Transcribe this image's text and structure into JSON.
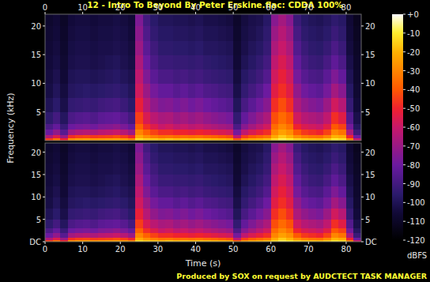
{
  "title": "12 - Intro To Beyond By Peter Erskine.flac: CDDA 100%",
  "footer": "Produced by SOX on request by AUDCTECT TASK MANAGER",
  "x_label": "Time (s)",
  "y_label": "Frequency (kHz)",
  "colorbar": {
    "label": "dBFS",
    "range": [
      -120,
      0
    ],
    "ticks": [
      {
        "value": 0,
        "label": "+0"
      },
      -10,
      -20,
      -30,
      -40,
      -50,
      -60,
      -70,
      -80,
      -90,
      -100,
      -110,
      -120
    ]
  },
  "chart_data": [
    {
      "type": "heatmap",
      "xlim": [
        0,
        84
      ],
      "ylim": [
        0,
        22.05
      ],
      "xticks": [
        0,
        10,
        20,
        30,
        40,
        50,
        60,
        70,
        80
      ],
      "yticks": [
        5,
        10,
        15,
        20
      ],
      "x_bins": [
        0,
        2,
        4,
        6,
        8,
        10,
        12,
        14,
        16,
        18,
        20,
        22,
        24,
        26,
        28,
        30,
        32,
        34,
        36,
        38,
        40,
        42,
        44,
        46,
        48,
        50,
        52,
        54,
        56,
        58,
        60,
        62,
        64,
        66,
        68,
        70,
        72,
        74,
        76,
        78,
        80,
        82,
        84
      ],
      "y_bins": [
        0,
        0.5,
        1,
        2,
        3,
        5,
        7.5,
        10,
        12.5,
        15,
        17.5,
        20,
        22.05
      ],
      "cells": [
        [
          -45,
          -65,
          -80,
          -88,
          -95,
          -100,
          -103,
          -104,
          -105,
          -106,
          -107,
          -108
        ],
        [
          -35,
          -55,
          -72,
          -82,
          -90,
          -96,
          -99,
          -101,
          -103,
          -104,
          -105,
          -106
        ],
        [
          -50,
          -70,
          -85,
          -92,
          -98,
          -102,
          -104,
          -106,
          -107,
          -108,
          -109,
          -110
        ],
        [
          -28,
          -48,
          -68,
          -80,
          -88,
          -94,
          -98,
          -100,
          -102,
          -103,
          -104,
          -105
        ],
        [
          -25,
          -45,
          -65,
          -78,
          -86,
          -93,
          -97,
          -99,
          -101,
          -102,
          -103,
          -104
        ],
        [
          -24,
          -44,
          -64,
          -77,
          -85,
          -92,
          -96,
          -99,
          -101,
          -102,
          -103,
          -104
        ],
        [
          -26,
          -46,
          -66,
          -79,
          -87,
          -93,
          -97,
          -100,
          -102,
          -103,
          -104,
          -105
        ],
        [
          -25,
          -45,
          -63,
          -76,
          -84,
          -91,
          -96,
          -99,
          -101,
          -102,
          -103,
          -104
        ],
        [
          -24,
          -44,
          -62,
          -75,
          -83,
          -90,
          -95,
          -98,
          -100,
          -102,
          -103,
          -104
        ],
        [
          -23,
          -42,
          -60,
          -73,
          -82,
          -89,
          -94,
          -97,
          -99,
          -101,
          -102,
          -103
        ],
        [
          -25,
          -45,
          -64,
          -77,
          -85,
          -92,
          -96,
          -99,
          -101,
          -102,
          -103,
          -104
        ],
        [
          -30,
          -50,
          -70,
          -82,
          -90,
          -96,
          -99,
          -101,
          -103,
          -104,
          -105,
          -106
        ],
        [
          -12,
          -22,
          -30,
          -38,
          -45,
          -52,
          -58,
          -62,
          -66,
          -70,
          -73,
          -76
        ],
        [
          -15,
          -28,
          -38,
          -48,
          -56,
          -64,
          -70,
          -76,
          -80,
          -84,
          -87,
          -90
        ],
        [
          -16,
          -32,
          -44,
          -55,
          -63,
          -72,
          -78,
          -84,
          -88,
          -91,
          -94,
          -96
        ],
        [
          -18,
          -35,
          -48,
          -60,
          -67,
          -76,
          -82,
          -88,
          -92,
          -95,
          -97,
          -99
        ],
        [
          -16,
          -34,
          -48,
          -58,
          -66,
          -75,
          -82,
          -88,
          -92,
          -95,
          -97,
          -99
        ],
        [
          -18,
          -36,
          -50,
          -62,
          -70,
          -78,
          -85,
          -90,
          -93,
          -96,
          -98,
          -100
        ],
        [
          -17,
          -35,
          -50,
          -60,
          -68,
          -76,
          -83,
          -89,
          -93,
          -96,
          -98,
          -100
        ],
        [
          -18,
          -36,
          -52,
          -63,
          -71,
          -79,
          -86,
          -91,
          -94,
          -97,
          -99,
          -101
        ],
        [
          -17,
          -35,
          -50,
          -61,
          -69,
          -77,
          -84,
          -90,
          -93,
          -96,
          -98,
          -100
        ],
        [
          -18,
          -37,
          -52,
          -64,
          -72,
          -80,
          -87,
          -92,
          -95,
          -98,
          -100,
          -102
        ],
        [
          -19,
          -38,
          -54,
          -66,
          -74,
          -82,
          -88,
          -93,
          -96,
          -98,
          -100,
          -102
        ],
        [
          -20,
          -40,
          -56,
          -68,
          -76,
          -84,
          -90,
          -94,
          -97,
          -99,
          -101,
          -103
        ],
        [
          -22,
          -42,
          -58,
          -70,
          -78,
          -86,
          -91,
          -95,
          -98,
          -100,
          -102,
          -104
        ],
        [
          -40,
          -62,
          -78,
          -88,
          -94,
          -99,
          -102,
          -104,
          -106,
          -107,
          -108,
          -109
        ],
        [
          -26,
          -45,
          -62,
          -74,
          -82,
          -89,
          -94,
          -97,
          -100,
          -102,
          -103,
          -104
        ],
        [
          -22,
          -40,
          -56,
          -68,
          -76,
          -84,
          -90,
          -94,
          -97,
          -99,
          -101,
          -102
        ],
        [
          -20,
          -37,
          -52,
          -63,
          -71,
          -79,
          -86,
          -91,
          -94,
          -97,
          -99,
          -101
        ],
        [
          -18,
          -34,
          -48,
          -58,
          -66,
          -74,
          -80,
          -86,
          -90,
          -93,
          -95,
          -97
        ],
        [
          -12,
          -22,
          -30,
          -36,
          -42,
          -48,
          -54,
          -58,
          -62,
          -66,
          -70,
          -74
        ],
        [
          -8,
          -16,
          -24,
          -30,
          -36,
          -42,
          -48,
          -52,
          -56,
          -60,
          -64,
          -68
        ],
        [
          -10,
          -20,
          -28,
          -35,
          -41,
          -48,
          -54,
          -58,
          -62,
          -66,
          -70,
          -74
        ],
        [
          -14,
          -28,
          -40,
          -50,
          -58,
          -66,
          -72,
          -78,
          -82,
          -86,
          -89,
          -92
        ],
        [
          -16,
          -32,
          -46,
          -56,
          -64,
          -72,
          -79,
          -85,
          -89,
          -92,
          -95,
          -97
        ],
        [
          -17,
          -34,
          -48,
          -58,
          -66,
          -75,
          -82,
          -88,
          -92,
          -95,
          -97,
          -99
        ],
        [
          -18,
          -35,
          -50,
          -60,
          -68,
          -77,
          -84,
          -89,
          -93,
          -96,
          -98,
          -100
        ],
        [
          -15,
          -30,
          -44,
          -54,
          -62,
          -70,
          -78,
          -84,
          -89,
          -93,
          -96,
          -98
        ],
        [
          -10,
          -20,
          -30,
          -40,
          -48,
          -58,
          -68,
          -76,
          -83,
          -88,
          -92,
          -95
        ],
        [
          -12,
          -22,
          -34,
          -44,
          -54,
          -64,
          -74,
          -82,
          -88,
          -92,
          -95,
          -97
        ],
        [
          -30,
          -50,
          -66,
          -78,
          -86,
          -93,
          -97,
          -100,
          -102,
          -104,
          -105,
          -106
        ],
        [
          -60,
          -80,
          -92,
          -98,
          -102,
          -105,
          -107,
          -108,
          -109,
          -110,
          -111,
          -112
        ]
      ]
    },
    {
      "type": "heatmap",
      "xlim": [
        0,
        84
      ],
      "ylim": [
        0,
        22.05
      ],
      "xticks": [
        0,
        10,
        20,
        30,
        40,
        50,
        60,
        70,
        80
      ],
      "yticks": [
        {
          "value": 0,
          "label": "DC"
        },
        5,
        10,
        15,
        20
      ],
      "x_bins": [
        0,
        2,
        4,
        6,
        8,
        10,
        12,
        14,
        16,
        18,
        20,
        22,
        24,
        26,
        28,
        30,
        32,
        34,
        36,
        38,
        40,
        42,
        44,
        46,
        48,
        50,
        52,
        54,
        56,
        58,
        60,
        62,
        64,
        66,
        68,
        70,
        72,
        74,
        76,
        78,
        80,
        82,
        84
      ],
      "y_bins": [
        0,
        0.5,
        1,
        2,
        3,
        5,
        7.5,
        10,
        12.5,
        15,
        17.5,
        20,
        22.05
      ],
      "cells": [
        [
          -45,
          -65,
          -80,
          -88,
          -95,
          -100,
          -103,
          -104,
          -105,
          -106,
          -107,
          -108
        ],
        [
          -35,
          -55,
          -72,
          -82,
          -90,
          -96,
          -99,
          -101,
          -103,
          -104,
          -105,
          -106
        ],
        [
          -50,
          -70,
          -85,
          -92,
          -98,
          -102,
          -104,
          -106,
          -107,
          -108,
          -109,
          -110
        ],
        [
          -28,
          -48,
          -68,
          -80,
          -88,
          -94,
          -98,
          -100,
          -102,
          -103,
          -104,
          -105
        ],
        [
          -25,
          -45,
          -65,
          -78,
          -86,
          -93,
          -97,
          -99,
          -101,
          -102,
          -103,
          -104
        ],
        [
          -24,
          -44,
          -64,
          -77,
          -85,
          -92,
          -96,
          -99,
          -101,
          -102,
          -103,
          -104
        ],
        [
          -26,
          -46,
          -66,
          -79,
          -87,
          -93,
          -97,
          -100,
          -102,
          -103,
          -104,
          -105
        ],
        [
          -25,
          -45,
          -63,
          -76,
          -84,
          -91,
          -96,
          -99,
          -101,
          -102,
          -103,
          -104
        ],
        [
          -24,
          -44,
          -62,
          -75,
          -83,
          -90,
          -95,
          -98,
          -100,
          -102,
          -103,
          -104
        ],
        [
          -23,
          -42,
          -60,
          -73,
          -82,
          -89,
          -94,
          -97,
          -99,
          -101,
          -102,
          -103
        ],
        [
          -25,
          -45,
          -64,
          -77,
          -85,
          -92,
          -96,
          -99,
          -101,
          -102,
          -103,
          -104
        ],
        [
          -30,
          -50,
          -70,
          -82,
          -90,
          -96,
          -99,
          -101,
          -103,
          -104,
          -105,
          -106
        ],
        [
          -12,
          -22,
          -30,
          -38,
          -45,
          -52,
          -58,
          -62,
          -66,
          -70,
          -73,
          -76
        ],
        [
          -15,
          -28,
          -38,
          -48,
          -56,
          -64,
          -70,
          -76,
          -80,
          -84,
          -87,
          -90
        ],
        [
          -16,
          -32,
          -44,
          -55,
          -63,
          -72,
          -78,
          -84,
          -88,
          -91,
          -94,
          -96
        ],
        [
          -18,
          -35,
          -48,
          -60,
          -67,
          -76,
          -82,
          -88,
          -92,
          -95,
          -97,
          -99
        ],
        [
          -16,
          -34,
          -48,
          -58,
          -66,
          -75,
          -82,
          -88,
          -92,
          -95,
          -97,
          -99
        ],
        [
          -18,
          -36,
          -50,
          -62,
          -70,
          -78,
          -85,
          -90,
          -93,
          -96,
          -98,
          -100
        ],
        [
          -17,
          -35,
          -50,
          -60,
          -68,
          -76,
          -83,
          -89,
          -93,
          -96,
          -98,
          -100
        ],
        [
          -18,
          -36,
          -52,
          -63,
          -71,
          -79,
          -86,
          -91,
          -94,
          -97,
          -99,
          -101
        ],
        [
          -17,
          -35,
          -50,
          -61,
          -69,
          -77,
          -84,
          -90,
          -93,
          -96,
          -98,
          -100
        ],
        [
          -18,
          -37,
          -52,
          -64,
          -72,
          -80,
          -87,
          -92,
          -95,
          -98,
          -100,
          -102
        ],
        [
          -19,
          -38,
          -54,
          -66,
          -74,
          -82,
          -88,
          -93,
          -96,
          -98,
          -100,
          -102
        ],
        [
          -20,
          -40,
          -56,
          -68,
          -76,
          -84,
          -90,
          -94,
          -97,
          -99,
          -101,
          -103
        ],
        [
          -22,
          -42,
          -58,
          -70,
          -78,
          -86,
          -91,
          -95,
          -98,
          -100,
          -102,
          -104
        ],
        [
          -40,
          -62,
          -78,
          -88,
          -94,
          -99,
          -102,
          -104,
          -106,
          -107,
          -108,
          -109
        ],
        [
          -26,
          -45,
          -62,
          -74,
          -82,
          -89,
          -94,
          -97,
          -100,
          -102,
          -103,
          -104
        ],
        [
          -22,
          -40,
          -56,
          -68,
          -76,
          -84,
          -90,
          -94,
          -97,
          -99,
          -101,
          -102
        ],
        [
          -20,
          -37,
          -52,
          -63,
          -71,
          -79,
          -86,
          -91,
          -94,
          -97,
          -99,
          -101
        ],
        [
          -18,
          -34,
          -48,
          -58,
          -66,
          -74,
          -80,
          -86,
          -90,
          -93,
          -95,
          -97
        ],
        [
          -12,
          -22,
          -30,
          -36,
          -42,
          -48,
          -54,
          -58,
          -62,
          -66,
          -70,
          -74
        ],
        [
          -8,
          -16,
          -24,
          -30,
          -36,
          -42,
          -48,
          -52,
          -56,
          -60,
          -64,
          -68
        ],
        [
          -10,
          -20,
          -28,
          -35,
          -41,
          -48,
          -54,
          -58,
          -62,
          -66,
          -70,
          -74
        ],
        [
          -14,
          -28,
          -40,
          -50,
          -58,
          -66,
          -72,
          -78,
          -82,
          -86,
          -89,
          -92
        ],
        [
          -16,
          -32,
          -46,
          -56,
          -64,
          -72,
          -79,
          -85,
          -89,
          -92,
          -95,
          -97
        ],
        [
          -17,
          -34,
          -48,
          -58,
          -66,
          -75,
          -82,
          -88,
          -92,
          -95,
          -97,
          -99
        ],
        [
          -18,
          -35,
          -50,
          -60,
          -68,
          -77,
          -84,
          -89,
          -93,
          -96,
          -98,
          -100
        ],
        [
          -15,
          -30,
          -44,
          -54,
          -62,
          -70,
          -78,
          -84,
          -89,
          -93,
          -96,
          -98
        ],
        [
          -10,
          -20,
          -30,
          -40,
          -48,
          -58,
          -68,
          -76,
          -83,
          -88,
          -92,
          -95
        ],
        [
          -12,
          -22,
          -34,
          -44,
          -54,
          -64,
          -74,
          -82,
          -88,
          -92,
          -95,
          -97
        ],
        [
          -30,
          -50,
          -66,
          -78,
          -86,
          -93,
          -97,
          -100,
          -102,
          -104,
          -105,
          -106
        ],
        [
          -60,
          -80,
          -92,
          -98,
          -102,
          -105,
          -107,
          -108,
          -109,
          -110,
          -111,
          -112
        ]
      ]
    }
  ]
}
